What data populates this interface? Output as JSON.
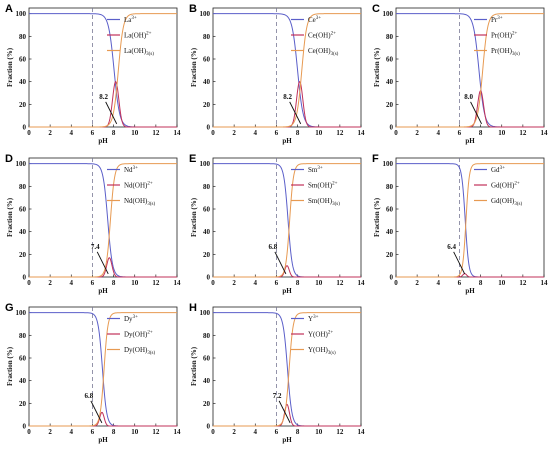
{
  "chart_data": [
    {
      "type": "line",
      "panel": "A",
      "xlabel": "pH",
      "ylabel": "Fraction (%)",
      "xlim": [
        0,
        14
      ],
      "ylim": [
        0,
        105
      ],
      "xticks": [
        0,
        2,
        4,
        6,
        8,
        10,
        12,
        14
      ],
      "yticks": [
        0,
        20,
        40,
        60,
        80,
        100
      ],
      "vline": 6,
      "annotation": {
        "text": "8.2",
        "x": 8.2
      },
      "series": [
        {
          "name": "La3+",
          "base": "La",
          "sup": "3+",
          "sub": "",
          "color": "#5b5fc9",
          "role": "ion",
          "x50": 8.05,
          "k": 3.8
        },
        {
          "name": "La(OH)2+",
          "base": "La(OH)",
          "sup": "2+",
          "sub": "",
          "color": "#c0305a",
          "role": "hydroxo",
          "peak_x": 8.2,
          "peak_y": 40,
          "width": 0.42
        },
        {
          "name": "La(OH)3(s)",
          "base": "La(OH)",
          "sup": "",
          "sub": "3(s)",
          "color": "#e79a52",
          "role": "solid",
          "x50": 8.45,
          "k": 4.2
        }
      ]
    },
    {
      "type": "line",
      "panel": "B",
      "xlabel": "pH",
      "ylabel": "Fraction (%)",
      "xlim": [
        0,
        14
      ],
      "ylim": [
        0,
        105
      ],
      "xticks": [
        0,
        2,
        4,
        6,
        8,
        10,
        12,
        14
      ],
      "yticks": [
        0,
        20,
        40,
        60,
        80,
        100
      ],
      "vline": 6,
      "annotation": {
        "text": "8.2",
        "x": 8.2
      },
      "series": [
        {
          "name": "Ce3+",
          "base": "Ce",
          "sup": "3+",
          "sub": "",
          "color": "#5b5fc9",
          "role": "ion",
          "x50": 8.0,
          "k": 3.8
        },
        {
          "name": "Ce(OH)2+",
          "base": "Ce(OH)",
          "sup": "2+",
          "sub": "",
          "color": "#c0305a",
          "role": "hydroxo",
          "peak_x": 8.2,
          "peak_y": 40,
          "width": 0.42
        },
        {
          "name": "Ce(OH)3(s)",
          "base": "Ce(OH)",
          "sup": "",
          "sub": "3(s)",
          "color": "#e79a52",
          "role": "solid",
          "x50": 8.4,
          "k": 4.2
        }
      ]
    },
    {
      "type": "line",
      "panel": "C",
      "xlabel": "pH",
      "ylabel": "Fraction (%)",
      "xlim": [
        0,
        14
      ],
      "ylim": [
        0,
        105
      ],
      "xticks": [
        0,
        2,
        4,
        6,
        8,
        10,
        12,
        14
      ],
      "yticks": [
        0,
        20,
        40,
        60,
        80,
        100
      ],
      "vline": 6,
      "annotation": {
        "text": "8.0",
        "x": 8.0
      },
      "series": [
        {
          "name": "Pr3+",
          "base": "Pr",
          "sup": "3+",
          "sub": "",
          "color": "#5b5fc9",
          "role": "ion",
          "x50": 7.85,
          "k": 3.8
        },
        {
          "name": "Pr(OH)2+",
          "base": "Pr(OH)",
          "sup": "2+",
          "sub": "",
          "color": "#c0305a",
          "role": "hydroxo",
          "peak_x": 8.0,
          "peak_y": 32,
          "width": 0.4
        },
        {
          "name": "Pr(OH)3(s)",
          "base": "Pr(OH)",
          "sup": "",
          "sub": "3(s)",
          "color": "#e79a52",
          "role": "solid",
          "x50": 8.2,
          "k": 4.2
        }
      ]
    },
    {
      "type": "line",
      "panel": "D",
      "xlabel": "pH",
      "ylabel": "Fraction (%)",
      "xlim": [
        0,
        14
      ],
      "ylim": [
        0,
        105
      ],
      "xticks": [
        0,
        2,
        4,
        6,
        8,
        10,
        12,
        14
      ],
      "yticks": [
        0,
        20,
        40,
        60,
        80,
        100
      ],
      "vline": 6,
      "annotation": {
        "text": "7.4",
        "x": 7.4
      },
      "series": [
        {
          "name": "Nd3+",
          "base": "Nd",
          "sup": "3+",
          "sub": "",
          "color": "#5b5fc9",
          "role": "ion",
          "x50": 7.45,
          "k": 4.5
        },
        {
          "name": "Nd(OH)2+",
          "base": "Nd(OH)",
          "sup": "2+",
          "sub": "",
          "color": "#c0305a",
          "role": "hydroxo",
          "peak_x": 7.6,
          "peak_y": 17,
          "width": 0.35
        },
        {
          "name": "Nd(OH)3(s)",
          "base": "Nd(OH)",
          "sup": "",
          "sub": "3(s)",
          "color": "#e79a52",
          "role": "solid",
          "x50": 7.7,
          "k": 5.0
        }
      ]
    },
    {
      "type": "line",
      "panel": "E",
      "xlabel": "pH",
      "ylabel": "Fraction (%)",
      "xlim": [
        0,
        14
      ],
      "ylim": [
        0,
        105
      ],
      "xticks": [
        0,
        2,
        4,
        6,
        8,
        10,
        12,
        14
      ],
      "yticks": [
        0,
        20,
        40,
        60,
        80,
        100
      ],
      "vline": 6,
      "annotation": {
        "text": "6.8",
        "x": 6.8
      },
      "series": [
        {
          "name": "Sm3+",
          "base": "Sm",
          "sup": "3+",
          "sub": "",
          "color": "#5b5fc9",
          "role": "ion",
          "x50": 7.1,
          "k": 5.0
        },
        {
          "name": "Sm(OH)2+",
          "base": "Sm(OH)",
          "sup": "2+",
          "sub": "",
          "color": "#c0305a",
          "role": "hydroxo",
          "peak_x": 7.0,
          "peak_y": 10,
          "width": 0.3
        },
        {
          "name": "Sm(OH)3(s)",
          "base": "Sm(OH)",
          "sup": "",
          "sub": "3(s)",
          "color": "#e79a52",
          "role": "solid",
          "x50": 7.25,
          "k": 5.5
        }
      ]
    },
    {
      "type": "line",
      "panel": "F",
      "xlabel": "pH",
      "ylabel": "Fraction (%)",
      "xlim": [
        0,
        14
      ],
      "ylim": [
        0,
        105
      ],
      "xticks": [
        0,
        2,
        4,
        6,
        8,
        10,
        12,
        14
      ],
      "yticks": [
        0,
        20,
        40,
        60,
        80,
        100
      ],
      "vline": 6,
      "annotation": {
        "text": "6.4",
        "x": 6.4
      },
      "series": [
        {
          "name": "Gd3+",
          "base": "Gd",
          "sup": "3+",
          "sub": "",
          "color": "#5b5fc9",
          "role": "ion",
          "x50": 6.55,
          "k": 6.0
        },
        {
          "name": "Gd(OH)2+",
          "base": "Gd(OH)",
          "sup": "2+",
          "sub": "",
          "color": "#c0305a",
          "role": "hydroxo",
          "peak_x": 6.5,
          "peak_y": 3,
          "width": 0.25
        },
        {
          "name": "Gd(OH)3(s)",
          "base": "Gd(OH)",
          "sup": "",
          "sub": "3(s)",
          "color": "#e79a52",
          "role": "solid",
          "x50": 6.62,
          "k": 6.5
        }
      ]
    },
    {
      "type": "line",
      "panel": "G",
      "xlabel": "pH",
      "ylabel": "Fraction (%)",
      "xlim": [
        0,
        14
      ],
      "ylim": [
        0,
        105
      ],
      "xticks": [
        0,
        2,
        4,
        6,
        8,
        10,
        12,
        14
      ],
      "yticks": [
        0,
        20,
        40,
        60,
        80,
        100
      ],
      "vline": 6,
      "annotation": {
        "text": "6.8",
        "x": 6.8
      },
      "series": [
        {
          "name": "Dy3+",
          "base": "Dy",
          "sup": "3+",
          "sub": "",
          "color": "#5b5fc9",
          "role": "ion",
          "x50": 6.95,
          "k": 5.0
        },
        {
          "name": "Dy(OH)2+",
          "base": "Dy(OH)",
          "sup": "2+",
          "sub": "",
          "color": "#c0305a",
          "role": "hydroxo",
          "peak_x": 6.9,
          "peak_y": 12,
          "width": 0.3
        },
        {
          "name": "Dy(OH)3(s)",
          "base": "Dy(OH)",
          "sup": "",
          "sub": "3(s)",
          "color": "#e79a52",
          "role": "solid",
          "x50": 7.1,
          "k": 5.5
        }
      ]
    },
    {
      "type": "line",
      "panel": "H",
      "xlabel": "pH",
      "ylabel": "Fraction (%)",
      "xlim": [
        0,
        14
      ],
      "ylim": [
        0,
        105
      ],
      "xticks": [
        0,
        2,
        4,
        6,
        8,
        10,
        12,
        14
      ],
      "yticks": [
        0,
        20,
        40,
        60,
        80,
        100
      ],
      "vline": 6,
      "annotation": {
        "text": "7.2",
        "x": 7.2
      },
      "series": [
        {
          "name": "Y3+",
          "base": "Y",
          "sup": "3+",
          "sub": "",
          "color": "#5b5fc9",
          "role": "ion",
          "x50": 7.05,
          "k": 4.8
        },
        {
          "name": "Y(OH)2+",
          "base": "Y(OH)",
          "sup": "2+",
          "sub": "",
          "color": "#c0305a",
          "role": "hydroxo",
          "peak_x": 7.0,
          "peak_y": 19,
          "width": 0.33
        },
        {
          "name": "Y(OH)3(s)",
          "base": "Y(OH)",
          "sup": "",
          "sub": "3(s)",
          "color": "#e79a52",
          "role": "solid",
          "x50": 7.2,
          "k": 5.2
        }
      ]
    }
  ]
}
